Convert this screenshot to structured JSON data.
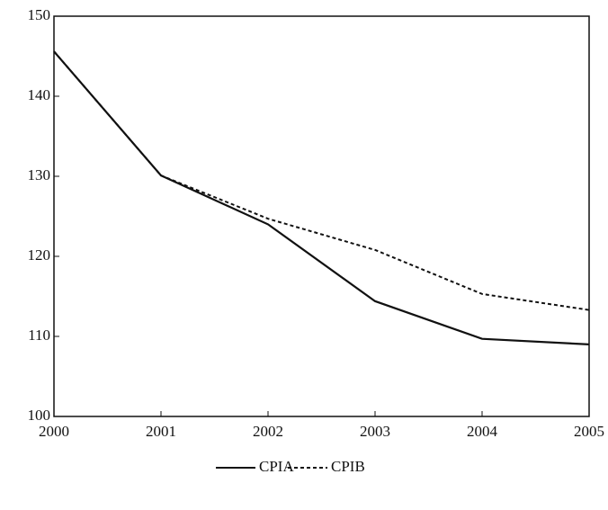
{
  "chart_data": {
    "type": "line",
    "categories": [
      "2000",
      "2001",
      "2002",
      "2003",
      "2004",
      "2005"
    ],
    "series": [
      {
        "name": "CPIA",
        "color": "#111111",
        "dash": false,
        "values": [
          145.6,
          130.1,
          124.0,
          114.4,
          109.7,
          109.0
        ]
      },
      {
        "name": "CPIB",
        "color": "#111111",
        "dash": true,
        "values": [
          145.6,
          130.1,
          124.7,
          120.8,
          115.3,
          113.3
        ]
      }
    ],
    "ylim": [
      100,
      150
    ],
    "yticks": [
      100,
      110,
      120,
      130,
      140,
      150
    ]
  }
}
